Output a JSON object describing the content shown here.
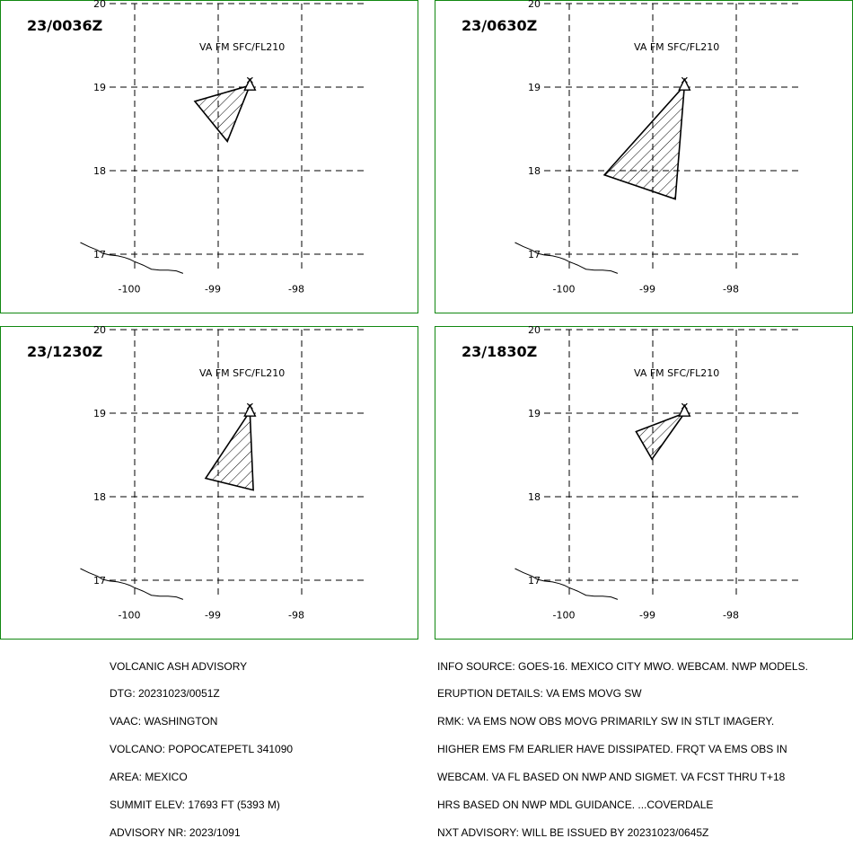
{
  "colors": {
    "frame": "#118811",
    "ink": "#000000",
    "background": "#ffffff"
  },
  "map": {
    "lat_ticks": [
      20,
      19,
      18,
      17
    ],
    "lon_ticks": [
      -100,
      -99,
      -98
    ],
    "lat_range": [
      16.8,
      20.0
    ],
    "lon_range": [
      -100.65,
      -97.25
    ],
    "coastline": [
      [
        -100.65,
        17.14
      ],
      [
        -100.55,
        17.09
      ],
      [
        -100.45,
        17.05
      ],
      [
        -100.38,
        17.01
      ],
      [
        -100.3,
        16.99
      ],
      [
        -100.2,
        16.98
      ],
      [
        -100.12,
        16.96
      ],
      [
        -100.06,
        16.94
      ],
      [
        -100.0,
        16.91
      ],
      [
        -99.95,
        16.89
      ],
      [
        -99.9,
        16.87
      ],
      [
        -99.86,
        16.85
      ],
      [
        -99.8,
        16.82
      ],
      [
        -99.7,
        16.81
      ],
      [
        -99.6,
        16.81
      ],
      [
        -99.5,
        16.8
      ],
      [
        -99.42,
        16.77
      ]
    ],
    "volcano": {
      "name_icon": "volcano-triangle-icon",
      "lon": -98.62,
      "lat": 19.02
    }
  },
  "panels": [
    {
      "time_label": "23/0036Z",
      "level_label": "VA FM SFC/FL210",
      "ash_polygon": [
        [
          -98.62,
          19.02
        ],
        [
          -98.89,
          18.35
        ],
        [
          -99.28,
          18.83
        ]
      ]
    },
    {
      "time_label": "23/0630Z",
      "level_label": "VA FM SFC/FL210",
      "ash_polygon": [
        [
          -98.62,
          19.02
        ],
        [
          -98.73,
          17.66
        ],
        [
          -99.58,
          17.95
        ]
      ]
    },
    {
      "time_label": "23/1230Z",
      "level_label": "VA FM SFC/FL210",
      "ash_polygon": [
        [
          -98.62,
          19.02
        ],
        [
          -98.58,
          18.08
        ],
        [
          -99.15,
          18.22
        ]
      ]
    },
    {
      "time_label": "23/1830Z",
      "level_label": "VA FM SFC/FL210",
      "ash_polygon": [
        [
          -98.62,
          19.0
        ],
        [
          -99.01,
          18.45
        ],
        [
          -99.2,
          18.78
        ]
      ]
    }
  ],
  "advisory_left": [
    "VOLCANIC ASH ADVISORY",
    "DTG: 20231023/0051Z",
    "VAAC: WASHINGTON",
    "VOLCANO: POPOCATEPETL 341090",
    "AREA: MEXICO",
    "SUMMIT ELEV: 17693 FT (5393 M)",
    "ADVISORY NR: 2023/1091"
  ],
  "advisory_right": [
    "INFO SOURCE: GOES-16. MEXICO CITY MWO. WEBCAM. NWP MODELS.",
    "ERUPTION DETAILS: VA EMS MOVG SW",
    "RMK: VA EMS NOW OBS MOVG PRIMARILY SW IN STLT IMAGERY.",
    "HIGHER EMS FM EARLIER HAVE DISSIPATED. FRQT VA EMS OBS IN",
    "WEBCAM. VA FL BASED ON NWP AND SIGMET. VA FCST THRU T+18",
    "HRS BASED ON NWP MDL GUIDANCE. ...COVERDALE",
    "NXT ADVISORY: WILL BE ISSUED BY 20231023/0645Z"
  ]
}
